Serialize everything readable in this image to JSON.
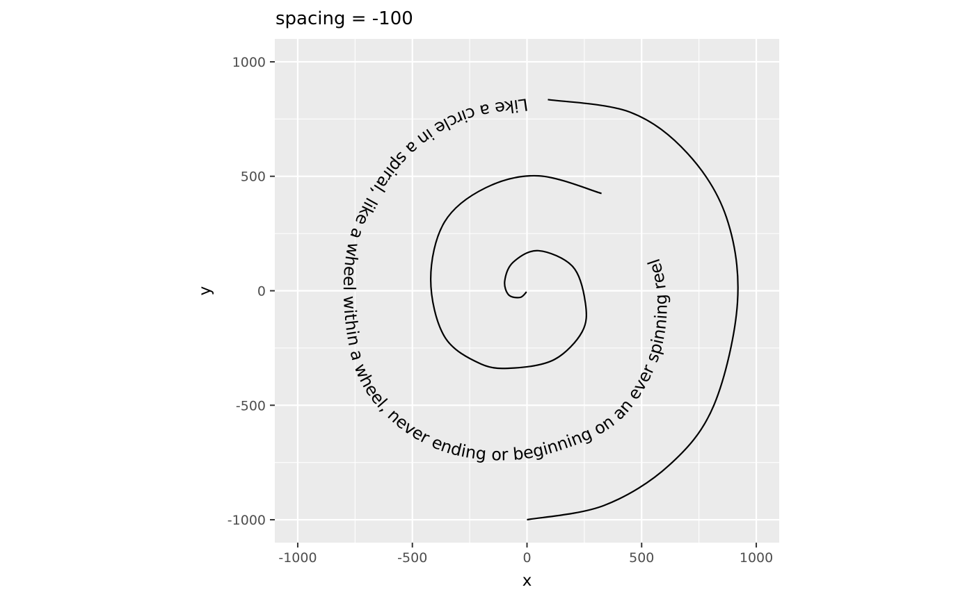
{
  "chart_data": {
    "type": "line",
    "title": "spacing = -100",
    "xlabel": "x",
    "ylabel": "y",
    "xlim": [
      -1100,
      1100
    ],
    "ylim": [
      -1100,
      1100
    ],
    "x_ticks": [
      -1000,
      -500,
      0,
      500,
      1000
    ],
    "y_ticks": [
      1000,
      500,
      0,
      -500,
      -1000
    ],
    "x_tick_labels": [
      "-1000",
      "-500",
      "0",
      "500",
      "1000"
    ],
    "y_tick_labels": [
      "1000",
      "500",
      "0",
      "-500",
      "-1000"
    ],
    "grid": true,
    "series": [
      {
        "points": [
          [
            0,
            -1000
          ],
          [
            335,
            -938
          ],
          [
            620,
            -762
          ],
          [
            815,
            -500
          ],
          [
            918,
            -52
          ],
          [
            870,
            320
          ],
          [
            700,
            600
          ],
          [
            450,
            780
          ],
          [
            91,
            835
          ]
        ]
      },
      {
        "points": [
          [
            325,
            425
          ],
          [
            52,
            502
          ],
          [
            -180,
            450
          ],
          [
            -360,
            300
          ],
          [
            -420,
            50
          ],
          [
            -360,
            -200
          ],
          [
            -200,
            -320
          ],
          [
            -55,
            -337
          ],
          [
            120,
            -300
          ],
          [
            240,
            -180
          ],
          [
            255,
            -55
          ],
          [
            200,
            105
          ],
          [
            50,
            175
          ],
          [
            -60,
            125
          ],
          [
            -97,
            43
          ],
          [
            -80,
            -18
          ],
          [
            -30,
            -29
          ],
          [
            -2,
            -5
          ]
        ]
      }
    ],
    "text_path": {
      "text": "Like a circle in a spiral, like a wheel within a wheel, never ending or beginning on an ever spinning reel",
      "points": [
        [
          0,
          840
        ],
        [
          -300,
          780
        ],
        [
          -560,
          600
        ],
        [
          -750,
          300
        ],
        [
          -800,
          0
        ],
        [
          -750,
          -340
        ],
        [
          -600,
          -560
        ],
        [
          -370,
          -700
        ],
        [
          -100,
          -740
        ],
        [
          150,
          -695
        ],
        [
          400,
          -570
        ],
        [
          560,
          -330
        ],
        [
          610,
          -70
        ],
        [
          560,
          180
        ],
        [
          420,
          360
        ]
      ]
    }
  }
}
